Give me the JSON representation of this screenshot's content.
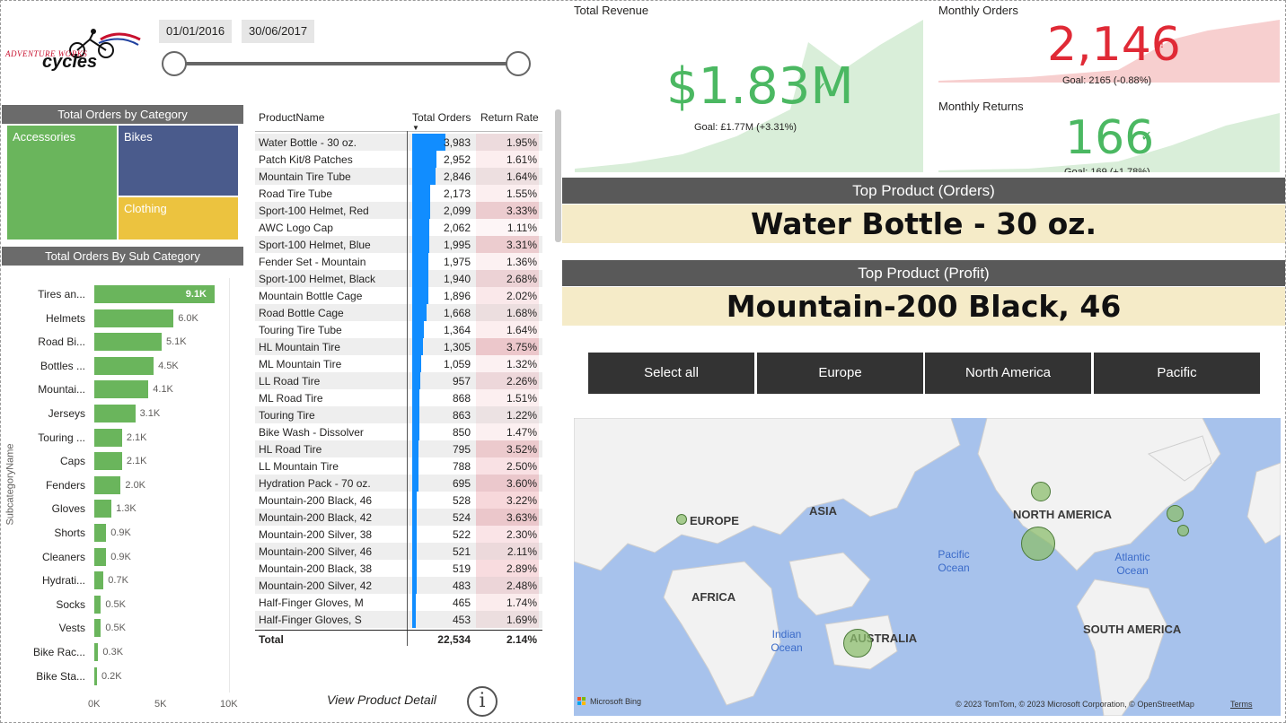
{
  "logo": {
    "line1": "ADVENTURE WORKS",
    "line2": "cycles"
  },
  "date_slicer": {
    "start": "01/01/2016",
    "end": "30/06/2017"
  },
  "category_treemap": {
    "title": "Total Orders by Category",
    "items": [
      {
        "label": "Accessories",
        "color": "#6ab55c"
      },
      {
        "label": "Bikes",
        "color": "#4a5b8c"
      },
      {
        "label": "Clothing",
        "color": "#ecc33f"
      }
    ]
  },
  "subcategory_chart": {
    "title": "Total Orders By Sub Category",
    "ylabel": "SubcategoryName",
    "x_ticks": [
      "0K",
      "5K",
      "10K"
    ]
  },
  "chart_data": {
    "type": "bar",
    "orientation": "horizontal",
    "title": "Total Orders By Sub Category",
    "ylabel": "SubcategoryName",
    "xlim": [
      0,
      10000
    ],
    "categories": [
      "Tires an...",
      "Helmets",
      "Road Bi...",
      "Bottles ...",
      "Mountai...",
      "Jerseys",
      "Touring ...",
      "Caps",
      "Fenders",
      "Gloves",
      "Shorts",
      "Cleaners",
      "Hydrati...",
      "Socks",
      "Vests",
      "Bike Rac...",
      "Bike Sta..."
    ],
    "values": [
      9100,
      6000,
      5100,
      4500,
      4100,
      3100,
      2100,
      2100,
      2000,
      1300,
      900,
      900,
      700,
      500,
      500,
      300,
      200
    ],
    "value_labels": [
      "9.1K",
      "6.0K",
      "5.1K",
      "4.5K",
      "4.1K",
      "3.1K",
      "2.1K",
      "2.1K",
      "2.0K",
      "1.3K",
      "0.9K",
      "0.9K",
      "0.7K",
      "0.5K",
      "0.5K",
      "0.3K",
      "0.2K"
    ],
    "color": "#6ab55c"
  },
  "product_table": {
    "headers": [
      "ProductName",
      "Total Orders",
      "Return Rate"
    ],
    "rows": [
      [
        "Water Bottle - 30 oz.",
        "3,983",
        "1.95%"
      ],
      [
        "Patch Kit/8 Patches",
        "2,952",
        "1.61%"
      ],
      [
        "Mountain Tire Tube",
        "2,846",
        "1.64%"
      ],
      [
        "Road Tire Tube",
        "2,173",
        "1.55%"
      ],
      [
        "Sport-100 Helmet, Red",
        "2,099",
        "3.33%"
      ],
      [
        "AWC Logo Cap",
        "2,062",
        "1.11%"
      ],
      [
        "Sport-100 Helmet, Blue",
        "1,995",
        "3.31%"
      ],
      [
        "Fender Set - Mountain",
        "1,975",
        "1.36%"
      ],
      [
        "Sport-100 Helmet, Black",
        "1,940",
        "2.68%"
      ],
      [
        "Mountain Bottle Cage",
        "1,896",
        "2.02%"
      ],
      [
        "Road Bottle Cage",
        "1,668",
        "1.68%"
      ],
      [
        "Touring Tire Tube",
        "1,364",
        "1.64%"
      ],
      [
        "HL Mountain Tire",
        "1,305",
        "3.75%"
      ],
      [
        "ML Mountain Tire",
        "1,059",
        "1.32%"
      ],
      [
        "LL Road Tire",
        "957",
        "2.26%"
      ],
      [
        "ML Road Tire",
        "868",
        "1.51%"
      ],
      [
        "Touring Tire",
        "863",
        "1.22%"
      ],
      [
        "Bike Wash - Dissolver",
        "850",
        "1.47%"
      ],
      [
        "HL Road Tire",
        "795",
        "3.52%"
      ],
      [
        "LL Mountain Tire",
        "788",
        "2.50%"
      ],
      [
        "Hydration Pack - 70 oz.",
        "695",
        "3.60%"
      ],
      [
        "Mountain-200 Black, 46",
        "528",
        "3.22%"
      ],
      [
        "Mountain-200 Black, 42",
        "524",
        "3.63%"
      ],
      [
        "Mountain-200 Silver, 38",
        "522",
        "2.30%"
      ],
      [
        "Mountain-200 Silver, 46",
        "521",
        "2.11%"
      ],
      [
        "Mountain-200 Black, 38",
        "519",
        "2.89%"
      ],
      [
        "Mountain-200 Silver, 42",
        "483",
        "2.48%"
      ],
      [
        "Half-Finger Gloves, M",
        "465",
        "1.74%"
      ],
      [
        "Half-Finger Gloves, S",
        "453",
        "1.69%"
      ]
    ],
    "total": {
      "label": "Total",
      "orders": "22,534",
      "return_rate": "2.14%"
    }
  },
  "view_detail": "View Product Detail",
  "info_icon": "i",
  "kpis": {
    "revenue": {
      "title": "Total Revenue",
      "value": "$1.83M",
      "goal": "Goal: £1.77M (+3.31%)",
      "color": "#4bb862"
    },
    "orders": {
      "title": "Monthly Orders",
      "value": "2,146",
      "goal": "Goal: 2165 (-0.88%)",
      "color": "#e02a36"
    },
    "returns": {
      "title": "Monthly Returns",
      "value": "166",
      "goal": "Goal: 169 (+1.78%)",
      "color": "#4bb862"
    }
  },
  "top_product_orders": {
    "title": "Top Product (Orders)",
    "value": "Water Bottle - 30 oz."
  },
  "top_product_profit": {
    "title": "Top Product (Profit)",
    "value": "Mountain-200 Black, 46"
  },
  "region_slicer": [
    "Select all",
    "Europe",
    "North America",
    "Pacific"
  ],
  "map": {
    "continents": [
      "EUROPE",
      "ASIA",
      "NORTH AMERICA",
      "AFRICA",
      "AUSTRALIA",
      "SOUTH AMERICA"
    ],
    "oceans": [
      "Pacific Ocean",
      "Atlantic Ocean",
      "Indian Ocean"
    ],
    "brand": "Microsoft Bing",
    "copyright": "© 2023 TomTom, © 2023 Microsoft Corporation, © OpenStreetMap",
    "terms": "Terms"
  }
}
